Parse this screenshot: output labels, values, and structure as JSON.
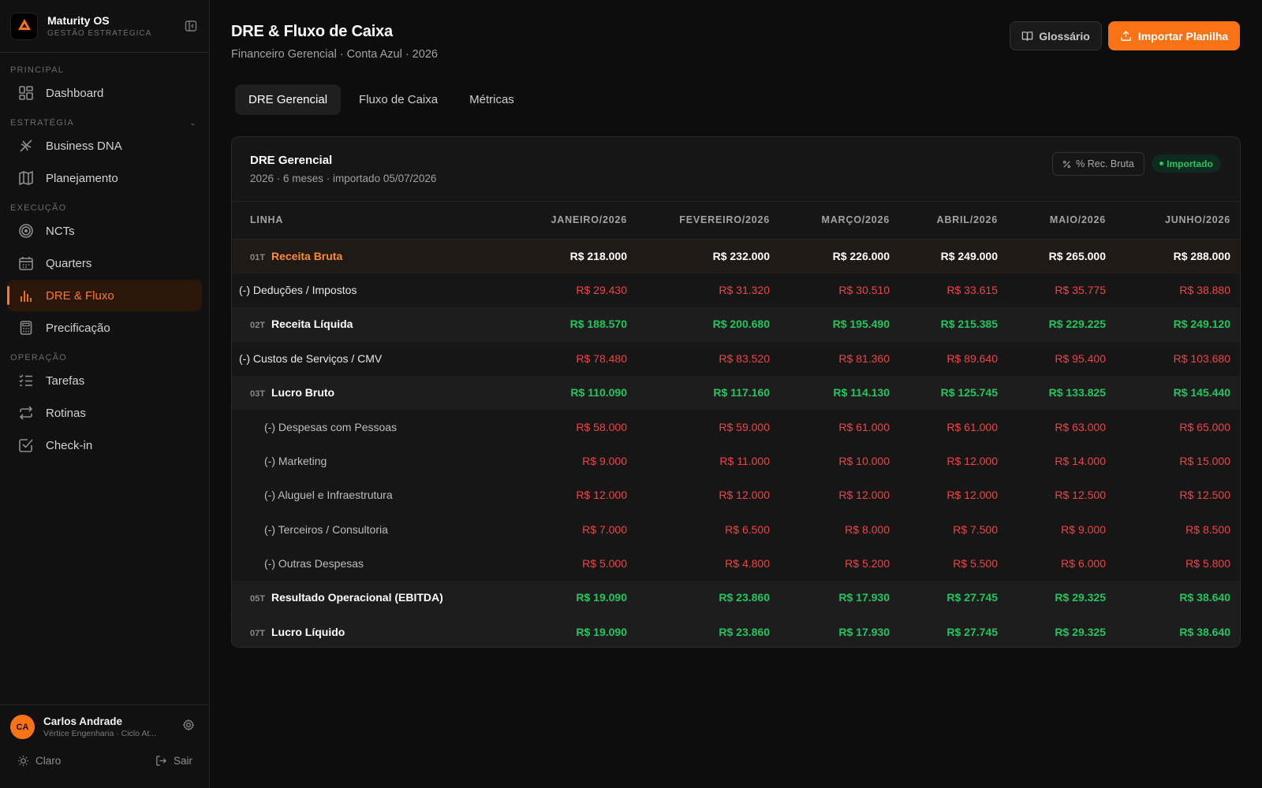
{
  "app": {
    "name": "Maturity OS",
    "subtitle": "GESTÃO ESTRATÉGICA",
    "accent": "#f97316"
  },
  "sidebar": {
    "sections": [
      {
        "label": "PRINCIPAL",
        "items": [
          {
            "label": "Dashboard",
            "icon": "dashboard-icon"
          }
        ]
      },
      {
        "label": "ESTRATÉGIA",
        "items": [
          {
            "label": "Business DNA",
            "icon": "dna-icon"
          },
          {
            "label": "Planejamento",
            "icon": "map-icon"
          }
        ]
      },
      {
        "label": "EXECUÇÃO",
        "items": [
          {
            "label": "NCTs",
            "icon": "target-icon"
          },
          {
            "label": "Quarters",
            "icon": "calendar-icon"
          },
          {
            "label": "DRE & Fluxo",
            "icon": "bar-chart-icon",
            "active": true
          },
          {
            "label": "Precificação",
            "icon": "calculator-icon"
          }
        ]
      },
      {
        "label": "OPERAÇÃO",
        "items": [
          {
            "label": "Tarefas",
            "icon": "checklist-icon"
          },
          {
            "label": "Rotinas",
            "icon": "repeat-icon"
          },
          {
            "label": "Check-in",
            "icon": "checkbox-icon"
          }
        ]
      }
    ],
    "user": {
      "initials": "CA",
      "name": "Carlos Andrade",
      "org": "Vértice Engenharia · Ciclo At..."
    },
    "theme_label": "Claro",
    "logout_label": "Sair"
  },
  "header": {
    "title": "DRE & Fluxo de Caixa",
    "subtitle": "Financeiro Gerencial · Conta Azul · 2026",
    "glossary_label": "Glossário",
    "import_label": "Importar Planilha"
  },
  "tabs": [
    {
      "label": "DRE Gerencial",
      "active": true
    },
    {
      "label": "Fluxo de Caixa"
    },
    {
      "label": "Métricas"
    }
  ],
  "card": {
    "title": "DRE Gerencial",
    "subtitle": "2026 · 6 meses · importado 05/07/2026",
    "pct_label": "% Rec. Bruta",
    "status_label": "Importado"
  },
  "table": {
    "columns": [
      "LINHA",
      "JANEIRO/2026",
      "FEVEREIRO/2026",
      "MARÇO/2026",
      "ABRIL/2026",
      "MAIO/2026",
      "JUNHO/2026"
    ],
    "rows": [
      {
        "code": "01T",
        "label": "Receita Bruta",
        "kind": "first",
        "tone": "white",
        "values": [
          "R$ 218.000",
          "R$ 232.000",
          "R$ 226.000",
          "R$ 249.000",
          "R$ 265.000",
          "R$ 288.000"
        ]
      },
      {
        "label": "(-) Deduções / Impostos",
        "kind": "sub",
        "tone": "red",
        "values": [
          "R$ 29.430",
          "R$ 31.320",
          "R$ 30.510",
          "R$ 33.615",
          "R$ 35.775",
          "R$ 38.880"
        ]
      },
      {
        "code": "02T",
        "label": "Receita Líquida",
        "kind": "total",
        "tone": "green",
        "values": [
          "R$ 188.570",
          "R$ 200.680",
          "R$ 195.490",
          "R$ 215.385",
          "R$ 229.225",
          "R$ 249.120"
        ]
      },
      {
        "label": "(-) Custos de Serviços / CMV",
        "kind": "sub",
        "tone": "red",
        "values": [
          "R$ 78.480",
          "R$ 83.520",
          "R$ 81.360",
          "R$ 89.640",
          "R$ 95.400",
          "R$ 103.680"
        ]
      },
      {
        "code": "03T",
        "label": "Lucro Bruto",
        "kind": "total",
        "tone": "green",
        "values": [
          "R$ 110.090",
          "R$ 117.160",
          "R$ 114.130",
          "R$ 125.745",
          "R$ 133.825",
          "R$ 145.440"
        ]
      },
      {
        "label": "(-) Despesas com Pessoas",
        "kind": "detail",
        "tone": "red",
        "values": [
          "R$ 58.000",
          "R$ 59.000",
          "R$ 61.000",
          "R$ 61.000",
          "R$ 63.000",
          "R$ 65.000"
        ]
      },
      {
        "label": "(-) Marketing",
        "kind": "detail",
        "tone": "red",
        "values": [
          "R$ 9.000",
          "R$ 11.000",
          "R$ 10.000",
          "R$ 12.000",
          "R$ 14.000",
          "R$ 15.000"
        ]
      },
      {
        "label": "(-) Aluguel e Infraestrutura",
        "kind": "detail",
        "tone": "red",
        "values": [
          "R$ 12.000",
          "R$ 12.000",
          "R$ 12.000",
          "R$ 12.000",
          "R$ 12.500",
          "R$ 12.500"
        ]
      },
      {
        "label": "(-) Terceiros / Consultoria",
        "kind": "detail",
        "tone": "red",
        "values": [
          "R$ 7.000",
          "R$ 6.500",
          "R$ 8.000",
          "R$ 7.500",
          "R$ 9.000",
          "R$ 8.500"
        ]
      },
      {
        "label": "(-) Outras Despesas",
        "kind": "detail",
        "tone": "red",
        "values": [
          "R$ 5.000",
          "R$ 4.800",
          "R$ 5.200",
          "R$ 5.500",
          "R$ 6.000",
          "R$ 5.800"
        ]
      },
      {
        "code": "05T",
        "label": "Resultado Operacional (EBITDA)",
        "kind": "total",
        "tone": "green",
        "values": [
          "R$ 19.090",
          "R$ 23.860",
          "R$ 17.930",
          "R$ 27.745",
          "R$ 29.325",
          "R$ 38.640"
        ]
      },
      {
        "code": "07T",
        "label": "Lucro Líquido",
        "kind": "total",
        "tone": "green",
        "values": [
          "R$ 19.090",
          "R$ 23.860",
          "R$ 17.930",
          "R$ 27.745",
          "R$ 29.325",
          "R$ 38.640"
        ]
      }
    ]
  }
}
